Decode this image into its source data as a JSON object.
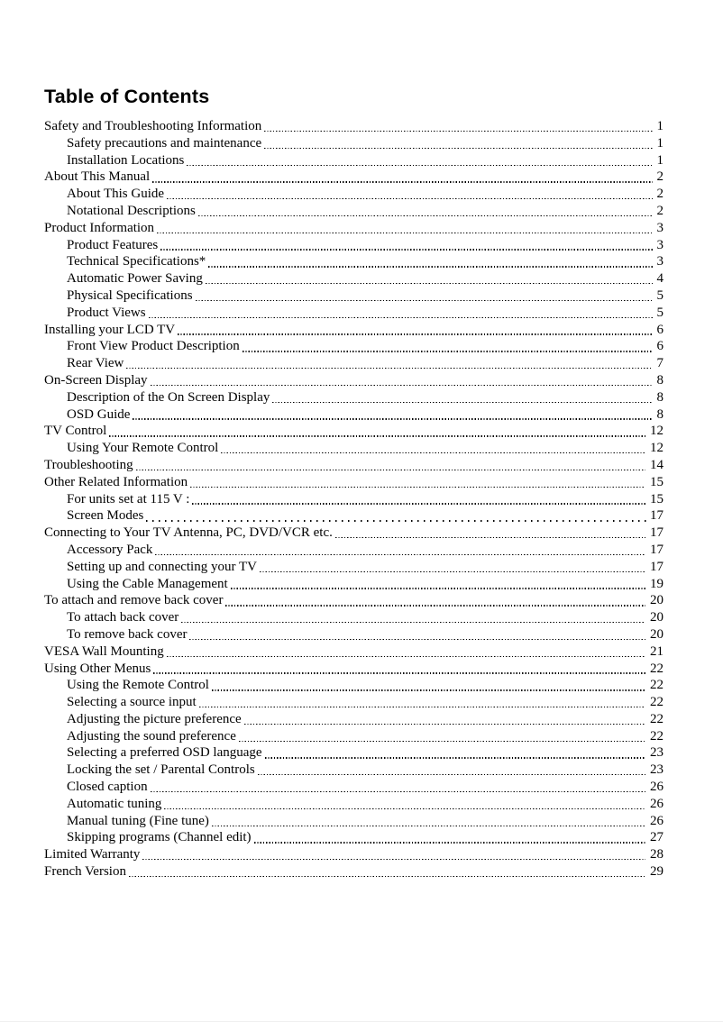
{
  "page": {
    "title": "Table of Contents"
  },
  "toc": {
    "entries": [
      {
        "label": "Safety and Troubleshooting Information",
        "page": "1",
        "level": 1
      },
      {
        "label": "Safety precautions and maintenance",
        "page": "1",
        "level": 2
      },
      {
        "label": "Installation Locations",
        "page": "1",
        "level": 2
      },
      {
        "label": "About This Manual",
        "page": "2",
        "level": 1
      },
      {
        "label": "About This Guide",
        "page": "2",
        "level": 2
      },
      {
        "label": "Notational Descriptions",
        "page": "2",
        "level": 2
      },
      {
        "label": "Product Information",
        "page": "3",
        "level": 1
      },
      {
        "label": "Product Features",
        "page": "3",
        "level": 2
      },
      {
        "label": "Technical Specifications*",
        "page": "3",
        "level": 2
      },
      {
        "label": "Automatic Power Saving",
        "page": "4",
        "level": 2
      },
      {
        "label": "Physical Specifications",
        "page": "5",
        "level": 2
      },
      {
        "label": "Product Views",
        "page": "5",
        "level": 2
      },
      {
        "label": "Installing your LCD TV",
        "page": "6",
        "level": 1
      },
      {
        "label": "Front View Product Description",
        "page": "6",
        "level": 2
      },
      {
        "label": "Rear View",
        "page": "7",
        "level": 2
      },
      {
        "label": "On-Screen Display",
        "page": "8",
        "level": 1
      },
      {
        "label": "Description of the On Screen Display",
        "page": "8",
        "level": 2
      },
      {
        "label": "OSD Guide",
        "page": "8",
        "level": 2
      },
      {
        "label": "TV Control",
        "page": "12",
        "level": 1
      },
      {
        "label": "Using Your Remote Control",
        "page": "12",
        "level": 2
      },
      {
        "label": "Troubleshooting",
        "page": "14",
        "level": 1
      },
      {
        "label": "Other Related Information",
        "page": "15",
        "level": 1
      },
      {
        "label": "For units set at 115 V :",
        "page": "15",
        "level": 2
      },
      {
        "label": "Screen Modes",
        "page": "17",
        "level": 2,
        "leader": "wide"
      },
      {
        "label": "Connecting to Your TV Antenna, PC, DVD/VCR etc.",
        "page": "17",
        "level": 1
      },
      {
        "label": "Accessory Pack",
        "page": "17",
        "level": 2
      },
      {
        "label": "Setting up and connecting your TV",
        "page": "17",
        "level": 2
      },
      {
        "label": "Using the Cable Management",
        "page": "19",
        "level": 2
      },
      {
        "label": "To attach and remove back cover",
        "page": "20",
        "level": 1
      },
      {
        "label": "To attach back cover",
        "page": "20",
        "level": 2
      },
      {
        "label": "To remove back cover",
        "page": "20",
        "level": 2
      },
      {
        "label": "VESA Wall Mounting",
        "page": "21",
        "level": 1
      },
      {
        "label": "Using Other Menus",
        "page": "22",
        "level": 1
      },
      {
        "label": "Using the Remote Control",
        "page": "22",
        "level": 2
      },
      {
        "label": "Selecting a source input",
        "page": "22",
        "level": 2
      },
      {
        "label": "Adjusting the picture preference",
        "page": "22",
        "level": 2
      },
      {
        "label": "Adjusting the sound preference",
        "page": "22",
        "level": 2
      },
      {
        "label": "Selecting a preferred OSD language",
        "page": "23",
        "level": 2
      },
      {
        "label": "Locking the set / Parental Controls",
        "page": "23",
        "level": 2
      },
      {
        "label": "Closed caption",
        "page": "26",
        "level": 2
      },
      {
        "label": "Automatic tuning",
        "page": "26",
        "level": 2
      },
      {
        "label": "Manual tuning (Fine tune)",
        "page": "26",
        "level": 2
      },
      {
        "label": "Skipping programs (Channel edit)",
        "page": "27",
        "level": 2
      },
      {
        "label": "Limited Warranty",
        "page": "28",
        "level": 1
      },
      {
        "label": "French Version",
        "page": "29",
        "level": 1
      }
    ]
  }
}
